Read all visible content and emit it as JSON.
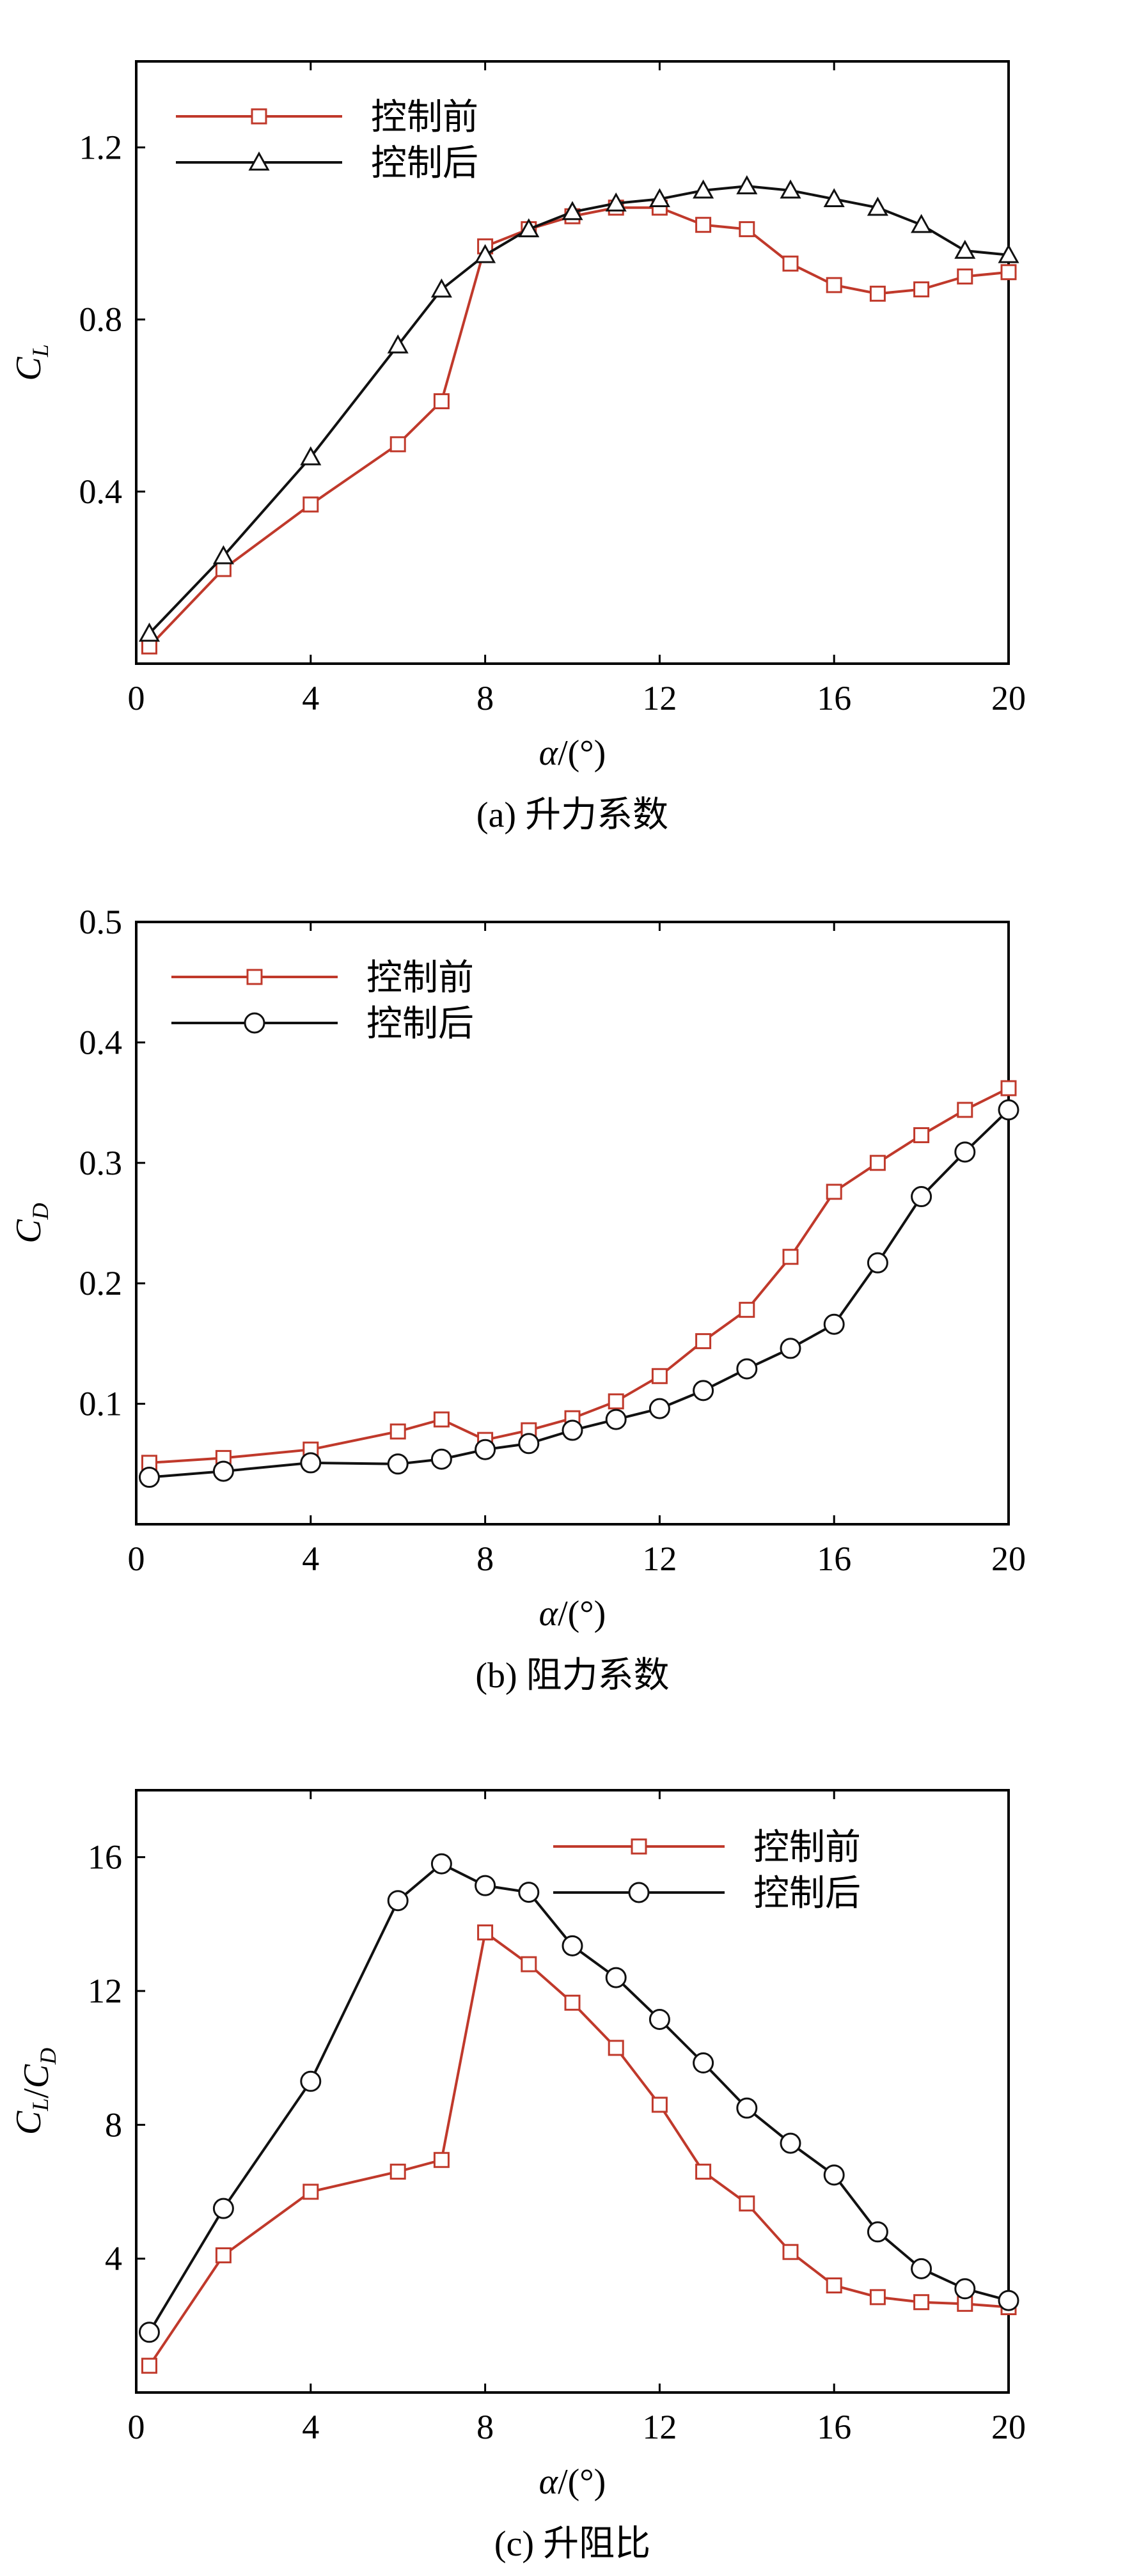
{
  "colors": {
    "before": "#c0392b",
    "after": "#111111",
    "axis": "#000000"
  },
  "chart_data": [
    {
      "type": "line",
      "caption": "(a) 升力系数",
      "xlabel": "α/(°)",
      "ylabel": "C_L",
      "xlim": [
        0,
        20
      ],
      "ylim": [
        0,
        1.4
      ],
      "xticks": [
        0,
        4,
        8,
        12,
        16,
        20
      ],
      "yticks": [
        0.4,
        0.8,
        1.2
      ],
      "ytick_labels": [
        "0.4",
        "0.8",
        "1.2"
      ],
      "legend_position": "top-left",
      "series": [
        {
          "name": "控制前",
          "marker": "square",
          "x": [
            0.3,
            2,
            4,
            6,
            7,
            8,
            9,
            10,
            11,
            12,
            13,
            14,
            15,
            16,
            17,
            18,
            19,
            20
          ],
          "y": [
            0.04,
            0.22,
            0.37,
            0.51,
            0.61,
            0.97,
            1.01,
            1.04,
            1.06,
            1.06,
            1.02,
            1.01,
            0.93,
            0.88,
            0.86,
            0.87,
            0.9,
            0.91
          ]
        },
        {
          "name": "控制后",
          "marker": "triangle",
          "x": [
            0.3,
            2,
            4,
            6,
            7,
            8,
            9,
            10,
            11,
            12,
            13,
            14,
            15,
            16,
            17,
            18,
            19,
            20
          ],
          "y": [
            0.07,
            0.25,
            0.48,
            0.74,
            0.87,
            0.95,
            1.01,
            1.05,
            1.07,
            1.08,
            1.1,
            1.11,
            1.1,
            1.08,
            1.06,
            1.02,
            0.96,
            0.95
          ]
        }
      ]
    },
    {
      "type": "line",
      "caption": "(b) 阻力系数",
      "xlabel": "α/(°)",
      "ylabel": "C_D",
      "xlim": [
        0,
        20
      ],
      "ylim": [
        0,
        0.5
      ],
      "xticks": [
        0,
        4,
        8,
        12,
        16,
        20
      ],
      "yticks": [
        0.1,
        0.2,
        0.3,
        0.4,
        0.5
      ],
      "ytick_labels": [
        "0.1",
        "0.2",
        "0.3",
        "0.4",
        "0.5"
      ],
      "legend_position": "top-left",
      "series": [
        {
          "name": "控制前",
          "marker": "square",
          "x": [
            0.3,
            2,
            4,
            6,
            7,
            8,
            9,
            10,
            11,
            12,
            13,
            14,
            15,
            16,
            17,
            18,
            19,
            20
          ],
          "y": [
            0.051,
            0.055,
            0.062,
            0.077,
            0.087,
            0.07,
            0.078,
            0.088,
            0.102,
            0.123,
            0.152,
            0.178,
            0.222,
            0.276,
            0.3,
            0.323,
            0.344,
            0.362
          ]
        },
        {
          "name": "控制后",
          "marker": "circle",
          "x": [
            0.3,
            2,
            4,
            6,
            7,
            8,
            9,
            10,
            11,
            12,
            13,
            14,
            15,
            16,
            17,
            18,
            19,
            20
          ],
          "y": [
            0.039,
            0.044,
            0.051,
            0.05,
            0.054,
            0.062,
            0.067,
            0.078,
            0.087,
            0.096,
            0.111,
            0.129,
            0.146,
            0.166,
            0.217,
            0.272,
            0.309,
            0.344
          ]
        }
      ]
    },
    {
      "type": "line",
      "caption": "(c) 升阻比",
      "xlabel": "α/(°)",
      "ylabel": "C_L/C_D",
      "xlim": [
        0,
        20
      ],
      "ylim": [
        0,
        18
      ],
      "xticks": [
        0,
        4,
        8,
        12,
        16,
        20
      ],
      "yticks": [
        4,
        8,
        12,
        16
      ],
      "ytick_labels": [
        "4",
        "8",
        "12",
        "16"
      ],
      "legend_position": "top-right",
      "series": [
        {
          "name": "控制前",
          "marker": "square",
          "x": [
            0.3,
            2,
            4,
            6,
            7,
            8,
            9,
            10,
            11,
            12,
            13,
            14,
            15,
            16,
            17,
            18,
            19,
            20
          ],
          "y": [
            0.8,
            4.1,
            6.0,
            6.6,
            6.95,
            13.75,
            12.8,
            11.65,
            10.3,
            8.6,
            6.6,
            5.65,
            4.2,
            3.2,
            2.85,
            2.7,
            2.65,
            2.55
          ]
        },
        {
          "name": "控制后",
          "marker": "circle",
          "x": [
            0.3,
            2,
            4,
            6,
            7,
            8,
            9,
            10,
            11,
            12,
            13,
            14,
            15,
            16,
            17,
            18,
            19,
            20
          ],
          "y": [
            1.8,
            5.5,
            9.3,
            14.7,
            15.8,
            15.15,
            14.95,
            13.35,
            12.4,
            11.15,
            9.85,
            8.5,
            7.45,
            6.5,
            4.8,
            3.7,
            3.1,
            2.75
          ]
        }
      ]
    }
  ]
}
